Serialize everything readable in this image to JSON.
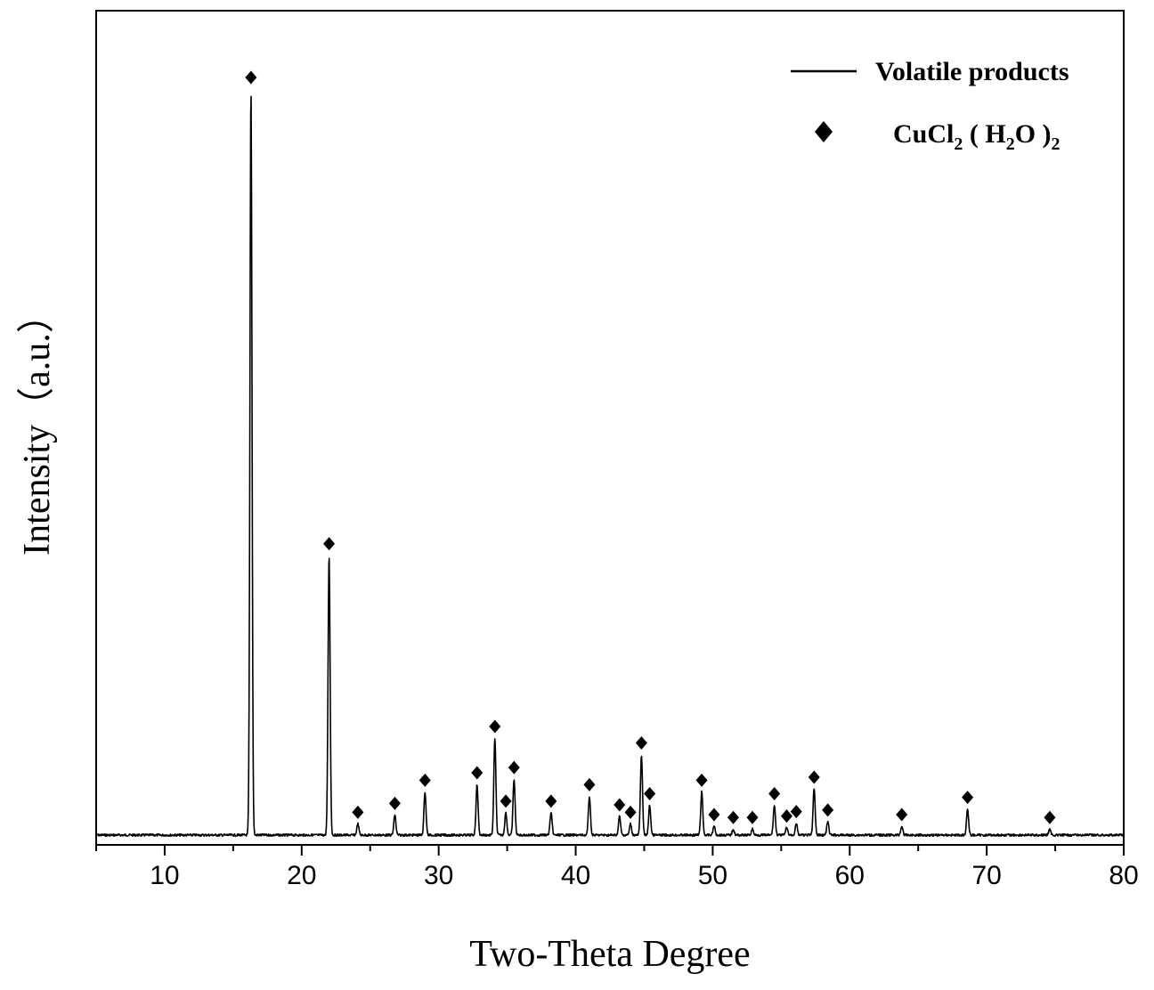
{
  "chart_data": {
    "type": "line",
    "xlabel": "Two-Theta Degree",
    "ylabel": "Intensity（a.u.）",
    "xlim": [
      5,
      80
    ],
    "ylim": [
      0,
      1.0
    ],
    "x_ticks": [
      10,
      20,
      30,
      40,
      50,
      60,
      70,
      80
    ],
    "y_ticks_shown": false,
    "grid": false,
    "legend_position": "top-right",
    "series": [
      {
        "name": "Volatile products",
        "kind": "line",
        "color": "#000000",
        "baseline": 0.0,
        "peaks": [
          {
            "x": 16.3,
            "y": 1.0
          },
          {
            "x": 22.0,
            "y": 0.375
          },
          {
            "x": 24.1,
            "y": 0.015
          },
          {
            "x": 26.8,
            "y": 0.027
          },
          {
            "x": 29.0,
            "y": 0.058
          },
          {
            "x": 32.8,
            "y": 0.068
          },
          {
            "x": 34.1,
            "y": 0.13
          },
          {
            "x": 34.9,
            "y": 0.03
          },
          {
            "x": 35.5,
            "y": 0.075
          },
          {
            "x": 38.2,
            "y": 0.03
          },
          {
            "x": 41.0,
            "y": 0.052
          },
          {
            "x": 43.2,
            "y": 0.025
          },
          {
            "x": 44.0,
            "y": 0.015
          },
          {
            "x": 44.8,
            "y": 0.108
          },
          {
            "x": 45.4,
            "y": 0.04
          },
          {
            "x": 49.2,
            "y": 0.058
          },
          {
            "x": 50.1,
            "y": 0.012
          },
          {
            "x": 51.5,
            "y": 0.008
          },
          {
            "x": 52.9,
            "y": 0.008
          },
          {
            "x": 54.5,
            "y": 0.04
          },
          {
            "x": 55.4,
            "y": 0.01
          },
          {
            "x": 56.1,
            "y": 0.016
          },
          {
            "x": 57.4,
            "y": 0.062
          },
          {
            "x": 58.4,
            "y": 0.018
          },
          {
            "x": 63.8,
            "y": 0.012
          },
          {
            "x": 68.6,
            "y": 0.035
          },
          {
            "x": 74.6,
            "y": 0.008
          }
        ]
      },
      {
        "name_parts": [
          "CuCl",
          "2",
          " ( H",
          "2",
          "O )",
          "2"
        ],
        "kind": "marker",
        "marker": "diamond",
        "color": "#000000",
        "points": [
          {
            "x": 16.3,
            "y": 1.0
          },
          {
            "x": 22.0,
            "y": 0.375
          },
          {
            "x": 24.1,
            "y": 0.015
          },
          {
            "x": 26.8,
            "y": 0.027
          },
          {
            "x": 29.0,
            "y": 0.058
          },
          {
            "x": 32.8,
            "y": 0.068
          },
          {
            "x": 34.1,
            "y": 0.13
          },
          {
            "x": 34.9,
            "y": 0.03
          },
          {
            "x": 35.5,
            "y": 0.075
          },
          {
            "x": 38.2,
            "y": 0.03
          },
          {
            "x": 41.0,
            "y": 0.052
          },
          {
            "x": 43.2,
            "y": 0.025
          },
          {
            "x": 44.0,
            "y": 0.015
          },
          {
            "x": 44.8,
            "y": 0.108
          },
          {
            "x": 45.4,
            "y": 0.04
          },
          {
            "x": 49.2,
            "y": 0.058
          },
          {
            "x": 50.1,
            "y": 0.012
          },
          {
            "x": 51.5,
            "y": 0.008
          },
          {
            "x": 52.9,
            "y": 0.008
          },
          {
            "x": 54.5,
            "y": 0.04
          },
          {
            "x": 55.4,
            "y": 0.01
          },
          {
            "x": 56.1,
            "y": 0.016
          },
          {
            "x": 57.4,
            "y": 0.062
          },
          {
            "x": 58.4,
            "y": 0.018
          },
          {
            "x": 63.8,
            "y": 0.012
          },
          {
            "x": 68.6,
            "y": 0.035
          },
          {
            "x": 74.6,
            "y": 0.008
          }
        ]
      }
    ]
  }
}
